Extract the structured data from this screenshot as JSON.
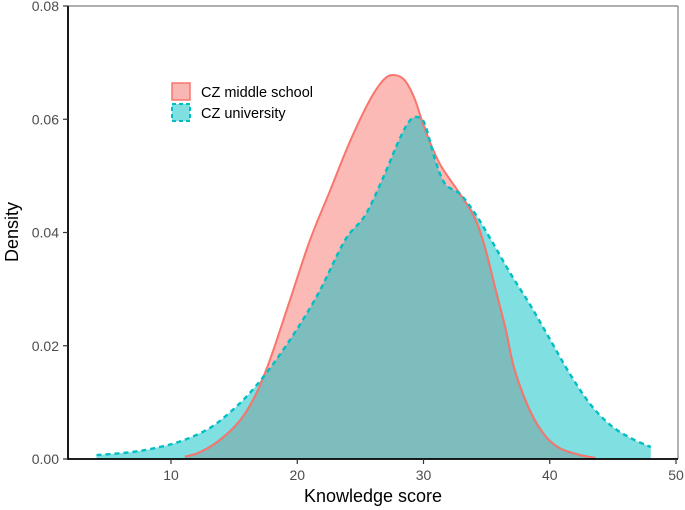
{
  "chart_data": {
    "type": "area",
    "subtype": "density",
    "title": "",
    "xlabel": "Knowledge score",
    "ylabel": "Density",
    "xlim": [
      2.5,
      50
    ],
    "ylim": [
      0,
      0.08
    ],
    "x_ticks": [
      10,
      20,
      30,
      40,
      50
    ],
    "y_ticks": [
      0.0,
      0.02,
      0.04,
      0.06,
      0.08
    ],
    "x_tick_labels": [
      "10",
      "20",
      "30",
      "40",
      "50"
    ],
    "y_tick_labels": [
      "0.00",
      "0.02",
      "0.04",
      "0.06",
      "0.08"
    ],
    "grid": false,
    "legend_position": "inside-top-left",
    "series": [
      {
        "name": "CZ middle school",
        "line_color": "#F8766D",
        "fill_color": "#F8B7B3",
        "line_style": "solid",
        "x": [
          11.1,
          12.3,
          13.9,
          15.5,
          16.7,
          17.8,
          19.4,
          21.0,
          22.6,
          24.2,
          25.8,
          26.9,
          27.7,
          28.5,
          29.3,
          30.1,
          31.3,
          32.9,
          34.1,
          34.9,
          35.7,
          36.5,
          37.2,
          38.4,
          39.6,
          40.8,
          42.4,
          43.6
        ],
        "y": [
          0.0004,
          0.0012,
          0.0034,
          0.0069,
          0.0113,
          0.0173,
          0.0279,
          0.0386,
          0.0474,
          0.0562,
          0.0636,
          0.0671,
          0.0678,
          0.0669,
          0.0636,
          0.0583,
          0.0521,
          0.0468,
          0.0424,
          0.0371,
          0.03,
          0.023,
          0.0159,
          0.0087,
          0.0042,
          0.0019,
          0.0007,
          0.0002
        ]
      },
      {
        "name": "CZ university",
        "line_color": "#00BFC4",
        "fill_color": "#7FDFE1",
        "line_style": "dashed",
        "x": [
          4.1,
          6.8,
          9.1,
          11.1,
          13.1,
          14.7,
          16.3,
          18.2,
          20.2,
          21.8,
          23.8,
          25.4,
          26.9,
          28.1,
          28.9,
          29.5,
          30.1,
          30.9,
          31.7,
          32.9,
          34.1,
          35.3,
          36.9,
          38.4,
          40.0,
          41.6,
          43.2,
          44.8,
          46.4,
          48.0
        ],
        "y": [
          0.0007,
          0.0012,
          0.0021,
          0.0034,
          0.0055,
          0.0083,
          0.0118,
          0.0171,
          0.0237,
          0.0298,
          0.0387,
          0.0431,
          0.0502,
          0.0565,
          0.0597,
          0.0604,
          0.0592,
          0.053,
          0.0486,
          0.0468,
          0.0433,
          0.0389,
          0.0327,
          0.0274,
          0.0212,
          0.015,
          0.0097,
          0.006,
          0.0037,
          0.0021
        ]
      }
    ],
    "overlap_fill_color": "#7FBDBB"
  },
  "legend": {
    "items": [
      {
        "label": "CZ middle school"
      },
      {
        "label": "CZ university"
      }
    ]
  },
  "axes": {
    "x_title": "Knowledge score",
    "y_title": "Density"
  }
}
